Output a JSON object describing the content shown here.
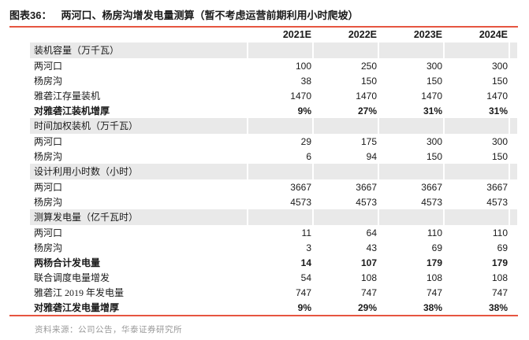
{
  "header": {
    "figure_label": "图表36：",
    "figure_title": "两河口、杨房沟增发电量测算（暂不考虑运营前期利用小时爬坡）"
  },
  "table": {
    "columns": [
      "2021E",
      "2022E",
      "2023E",
      "2024E"
    ],
    "rows": [
      {
        "label": "装机容量（万千瓦）",
        "type": "section",
        "values": [
          "",
          "",
          "",
          ""
        ]
      },
      {
        "label": "两河口",
        "type": "data",
        "values": [
          "100",
          "250",
          "300",
          "300"
        ]
      },
      {
        "label": "杨房沟",
        "type": "data",
        "values": [
          "38",
          "150",
          "150",
          "150"
        ]
      },
      {
        "label": "雅砻江存量装机",
        "type": "data",
        "values": [
          "1470",
          "1470",
          "1470",
          "1470"
        ]
      },
      {
        "label": "对雅砻江装机增厚",
        "type": "bold",
        "values": [
          "9%",
          "27%",
          "31%",
          "31%"
        ]
      },
      {
        "label": "时间加权装机（万千瓦）",
        "type": "section",
        "values": [
          "",
          "",
          "",
          ""
        ]
      },
      {
        "label": "两河口",
        "type": "data",
        "values": [
          "29",
          "175",
          "300",
          "300"
        ]
      },
      {
        "label": "杨房沟",
        "type": "data",
        "values": [
          "6",
          "94",
          "150",
          "150"
        ]
      },
      {
        "label": "设计利用小时数（小时）",
        "type": "section",
        "values": [
          "",
          "",
          "",
          ""
        ]
      },
      {
        "label": "两河口",
        "type": "data",
        "values": [
          "3667",
          "3667",
          "3667",
          "3667"
        ]
      },
      {
        "label": "杨房沟",
        "type": "data",
        "values": [
          "4573",
          "4573",
          "4573",
          "4573"
        ]
      },
      {
        "label": "测算发电量（亿千瓦时）",
        "type": "section",
        "values": [
          "",
          "",
          "",
          ""
        ]
      },
      {
        "label": "两河口",
        "type": "data",
        "values": [
          "11",
          "64",
          "110",
          "110"
        ]
      },
      {
        "label": "杨房沟",
        "type": "data",
        "values": [
          "3",
          "43",
          "69",
          "69"
        ]
      },
      {
        "label": "两杨合计发电量",
        "type": "bold",
        "values": [
          "14",
          "107",
          "179",
          "179"
        ]
      },
      {
        "label": "联合调度电量增发",
        "type": "data",
        "values": [
          "54",
          "108",
          "108",
          "108"
        ]
      },
      {
        "label": "雅砻江 2019 年发电量",
        "type": "data",
        "values": [
          "747",
          "747",
          "747",
          "747"
        ]
      },
      {
        "label": "对雅砻江发电量增厚",
        "type": "bold",
        "values": [
          "9%",
          "29%",
          "38%",
          "38%"
        ]
      }
    ]
  },
  "footer": {
    "source": "资料来源：公司公告，华泰证券研究所"
  },
  "colors": {
    "accent": "#e65540",
    "section_bg": "#e9e9e9",
    "source_text": "#9a9a9a"
  }
}
